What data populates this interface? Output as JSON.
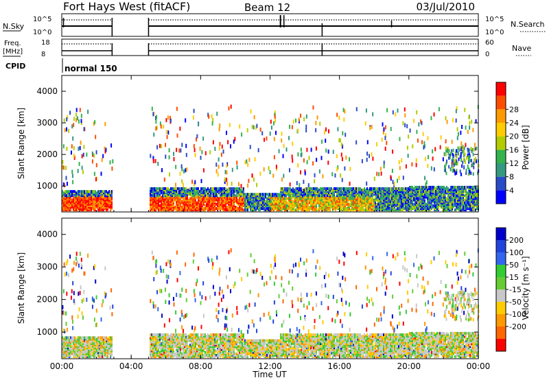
{
  "header": {
    "station": "Fort Hays West (fitACF)",
    "beam": "Beam 12",
    "date": "03/Jul/2010"
  },
  "panels": {
    "nsky": {
      "left_label": "N.Sky",
      "right_label": "N.Search",
      "left_ticks": [
        "10^5",
        "10^0"
      ],
      "right_ticks": [
        "10^5",
        "10^0"
      ]
    },
    "freq": {
      "left_label_1": "Freq.",
      "left_label_2": "[MHz]",
      "right_label": "Nave",
      "left_ticks": [
        "18",
        "8"
      ],
      "right_ticks": [
        "60",
        "0"
      ]
    },
    "cpid": {
      "label": "CPID",
      "mode": "normal 150"
    }
  },
  "chart_data": [
    {
      "type": "heatmap",
      "quantity": "power",
      "ylabel": "Slant Range [km]",
      "xlabel": "Time UT",
      "x_ticks": [
        "00:00",
        "04:00",
        "08:00",
        "12:00",
        "16:00",
        "20:00",
        "00:00"
      ],
      "y_ticks": [
        1000,
        2000,
        3000,
        4000
      ],
      "ylim": [
        180,
        4500
      ],
      "xlim_hours": [
        0,
        24
      ],
      "data_gaps_hours": [
        [
          2.9,
          5.0
        ]
      ],
      "colorbar": {
        "label": "Power [dB]",
        "ticks": [
          4,
          8,
          12,
          16,
          20,
          24,
          28
        ],
        "colors": [
          "#0000ff",
          "#2a4bc7",
          "#339980",
          "#33b24d",
          "#b3cc00",
          "#ffcc00",
          "#ff9900",
          "#ff4d00",
          "#ff0000"
        ]
      }
    },
    {
      "type": "heatmap",
      "quantity": "velocity",
      "ylabel": "Slant Range [km]",
      "xlabel": "Time UT",
      "x_ticks": [
        "00:00",
        "04:00",
        "08:00",
        "12:00",
        "16:00",
        "20:00",
        "00:00"
      ],
      "y_ticks": [
        1000,
        2000,
        3000,
        4000
      ],
      "ylim": [
        180,
        4500
      ],
      "xlim_hours": [
        0,
        24
      ],
      "data_gaps_hours": [
        [
          2.9,
          5.0
        ]
      ],
      "colorbar": {
        "label": "Velocity [m s⁻¹]",
        "ticks": [
          200,
          100,
          50,
          15,
          -15,
          -50,
          -100,
          -200
        ],
        "colors": [
          "#0000cc",
          "#2244dd",
          "#3366ee",
          "#33cc33",
          "#66cc33",
          "#c8c8c8",
          "#ffcc00",
          "#ff9900",
          "#ff6600",
          "#ff0000"
        ]
      }
    }
  ]
}
